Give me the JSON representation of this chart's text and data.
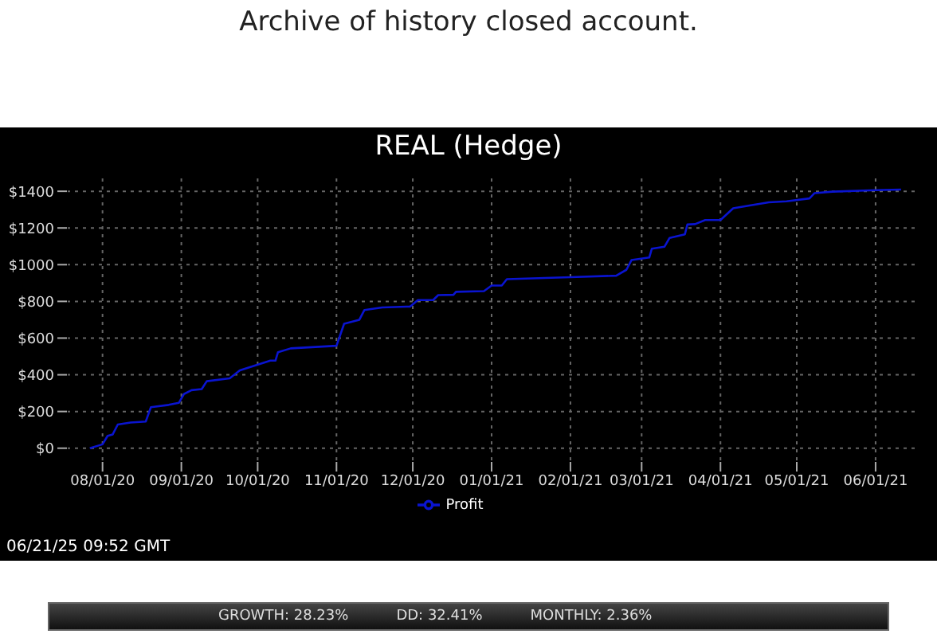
{
  "chart_data": {
    "type": "line",
    "title": "Archive of history closed account.",
    "subtitle": "REAL (Hedge)",
    "annotations": [
      "06/21/25 09:52 GMT",
      "GROWTH: 28.23%",
      "DD: 32.41%",
      "MONTHLY: 2.36%"
    ],
    "x": [
      "2020-07-27",
      "2020-08-01",
      "2020-08-03",
      "2020-08-05",
      "2020-08-07",
      "2020-08-12",
      "2020-08-18",
      "2020-08-20",
      "2020-08-27",
      "2020-08-31",
      "2020-09-02",
      "2020-09-05",
      "2020-09-09",
      "2020-09-11",
      "2020-09-20",
      "2020-09-24",
      "2020-10-06",
      "2020-10-08",
      "2020-10-09",
      "2020-10-14",
      "2020-11-01",
      "2020-11-04",
      "2020-11-10",
      "2020-11-12",
      "2020-11-19",
      "2020-11-30",
      "2020-12-03",
      "2020-12-09",
      "2020-12-11",
      "2020-12-17",
      "2020-12-18",
      "2020-12-29",
      "2021-01-01",
      "2021-01-05",
      "2021-01-07",
      "2021-02-01",
      "2021-02-19",
      "2021-02-23",
      "2021-02-25",
      "2021-03-04",
      "2021-03-05",
      "2021-03-10",
      "2021-03-12",
      "2021-03-18",
      "2021-03-19",
      "2021-03-22",
      "2021-03-26",
      "2021-04-01",
      "2021-04-06",
      "2021-04-12",
      "2021-04-20",
      "2021-04-27",
      "2021-05-06",
      "2021-05-08",
      "2021-05-15",
      "2021-06-01",
      "2021-06-11"
    ],
    "series": [
      {
        "name": "Profit",
        "color": "#0a14d0",
        "values": [
          0,
          21,
          67,
          75,
          129,
          140,
          145,
          223,
          236,
          247,
          295,
          316,
          322,
          365,
          381,
          424,
          477,
          477,
          523,
          544,
          558,
          678,
          700,
          753,
          767,
          772,
          807,
          807,
          834,
          836,
          852,
          856,
          886,
          886,
          921,
          932,
          940,
          972,
          1025,
          1039,
          1087,
          1098,
          1146,
          1165,
          1219,
          1221,
          1243,
          1243,
          1307,
          1321,
          1340,
          1345,
          1361,
          1390,
          1398,
          1406,
          1409
        ]
      }
    ],
    "xlim": [
      "2020-07-18",
      "2021-06-17"
    ],
    "xticks": [
      {
        "value": "2020-08-01",
        "label": "08/01/20"
      },
      {
        "value": "2020-09-01",
        "label": "09/01/20"
      },
      {
        "value": "2020-10-01",
        "label": "10/01/20"
      },
      {
        "value": "2020-11-01",
        "label": "11/01/20"
      },
      {
        "value": "2020-12-01",
        "label": "12/01/20"
      },
      {
        "value": "2021-01-01",
        "label": "01/01/21"
      },
      {
        "value": "2021-02-01",
        "label": "02/01/21"
      },
      {
        "value": "2021-03-01",
        "label": "03/01/21"
      },
      {
        "value": "2021-04-01",
        "label": "04/01/21"
      },
      {
        "value": "2021-05-01",
        "label": "05/01/21"
      },
      {
        "value": "2021-06-01",
        "label": "06/01/21"
      }
    ],
    "ylim": [
      -75,
      1470
    ],
    "yticks": [
      {
        "value": 0,
        "label": "$0"
      },
      {
        "value": 200,
        "label": "$200"
      },
      {
        "value": 400,
        "label": "$400"
      },
      {
        "value": 600,
        "label": "$600"
      },
      {
        "value": 800,
        "label": "$800"
      },
      {
        "value": 1000,
        "label": "$1000"
      },
      {
        "value": 1200,
        "label": "$1200"
      },
      {
        "value": 1400,
        "label": "$1400"
      }
    ],
    "grid": true,
    "legend": "bottom",
    "marker": "none",
    "line_style": "solid"
  }
}
